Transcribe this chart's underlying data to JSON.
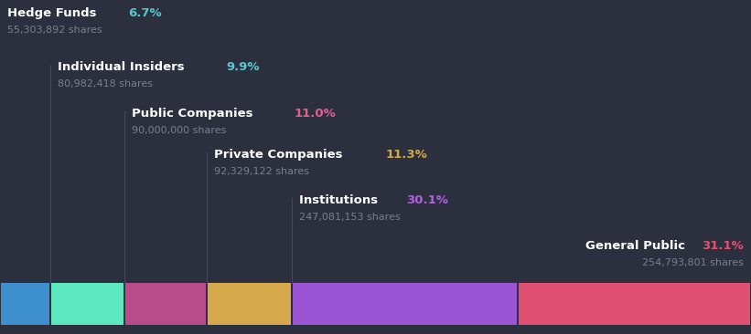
{
  "background_color": "#2b2f3e",
  "categories": [
    {
      "name": "Hedge Funds",
      "pct": "6.7%",
      "shares": "55,303,892 shares",
      "pct_color": "#5bc8d0",
      "bar_color": "#3d8fce"
    },
    {
      "name": "Individual Insiders",
      "pct": "9.9%",
      "shares": "80,982,418 shares",
      "pct_color": "#5bc8d0",
      "bar_color": "#5de8c0"
    },
    {
      "name": "Public Companies",
      "pct": "11.0%",
      "shares": "90,000,000 shares",
      "pct_color": "#e06090",
      "bar_color": "#b84b8a"
    },
    {
      "name": "Private Companies",
      "pct": "11.3%",
      "shares": "92,329,122 shares",
      "pct_color": "#d4a84b",
      "bar_color": "#d4a84b"
    },
    {
      "name": "Institutions",
      "pct": "30.1%",
      "shares": "247,081,153 shares",
      "pct_color": "#b060e0",
      "bar_color": "#9b55d4"
    },
    {
      "name": "General Public",
      "pct": "31.1%",
      "shares": "254,793,801 shares",
      "pct_color": "#e05070",
      "bar_color": "#e05070"
    }
  ],
  "pct_values": [
    6.7,
    9.9,
    11.0,
    11.3,
    30.1,
    31.1
  ],
  "label_text_color": "#ffffff",
  "shares_text_color": "#7a7f90",
  "line_color": "#44475a",
  "fig_width": 8.21,
  "fig_height": 3.66
}
